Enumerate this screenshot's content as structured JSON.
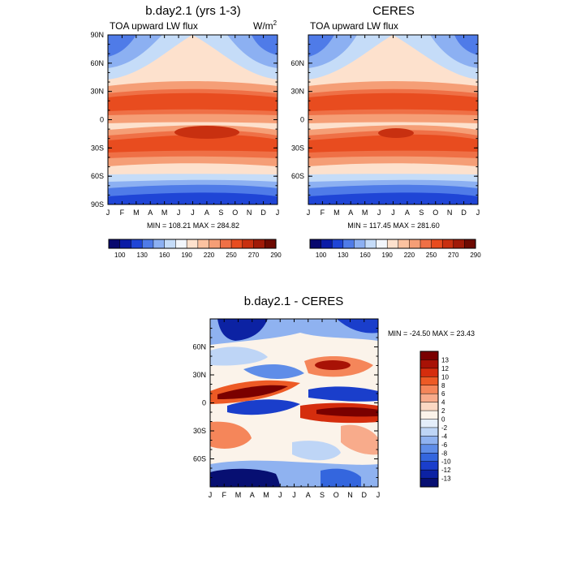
{
  "chart_data": [
    {
      "type": "heatmap",
      "title": "b.day2.1 (yrs 1-3)",
      "subtitle": "TOA upward LW flux",
      "units": "W/m",
      "units_superscript": "2",
      "stats_text": "MIN = 108.21 MAX = 284.82",
      "min": 108.21,
      "max": 284.82,
      "x_ticks": [
        "J",
        "F",
        "M",
        "A",
        "M",
        "J",
        "J",
        "A",
        "S",
        "O",
        "N",
        "D",
        "J"
      ],
      "y_ticks": [
        "90N",
        "60N",
        "30N",
        "0",
        "30S",
        "60S",
        "90S"
      ],
      "y_tick_values": [
        90,
        60,
        30,
        0,
        -30,
        -60,
        -90
      ],
      "xlim": [
        0,
        12
      ],
      "ylim": [
        -90,
        90
      ],
      "legend_levels": [
        100,
        130,
        160,
        190,
        220,
        250,
        270,
        290
      ]
    },
    {
      "type": "heatmap",
      "title": "CERES",
      "subtitle": "TOA upward LW flux",
      "stats_text": "MIN = 117.45 MAX = 281.60",
      "min": 117.45,
      "max": 281.6,
      "x_ticks": [
        "J",
        "F",
        "M",
        "A",
        "M",
        "J",
        "J",
        "A",
        "S",
        "O",
        "N",
        "D",
        "J"
      ],
      "y_ticks": [
        "60N",
        "30N",
        "0",
        "30S",
        "60S"
      ],
      "y_tick_values": [
        60,
        30,
        0,
        -30,
        -60
      ],
      "xlim": [
        0,
        12
      ],
      "ylim": [
        -90,
        90
      ],
      "legend_levels": [
        100,
        130,
        160,
        190,
        220,
        250,
        270,
        290
      ]
    },
    {
      "type": "heatmap",
      "title": "b.day2.1 - CERES",
      "stats_text": "MIN = -24.50 MAX =  23.43",
      "min": -24.5,
      "max": 23.43,
      "x_ticks": [
        "J",
        "F",
        "M",
        "A",
        "M",
        "J",
        "J",
        "A",
        "S",
        "O",
        "N",
        "D",
        "J"
      ],
      "y_ticks": [
        "60N",
        "30N",
        "0",
        "30S",
        "60S"
      ],
      "y_tick_values": [
        60,
        30,
        0,
        -30,
        -60
      ],
      "xlim": [
        0,
        12
      ],
      "ylim": [
        -90,
        90
      ],
      "legend_levels": [
        "13",
        "12",
        "10",
        "8",
        "6",
        "4",
        "2",
        "0",
        "-2",
        "-4",
        "-6",
        "-8",
        "-10",
        "-12",
        "-13"
      ]
    }
  ],
  "colors": {
    "flux_scale": [
      "#08086e",
      "#0a1ba6",
      "#1f45d6",
      "#4f7be8",
      "#8cb0f2",
      "#c5dcf8",
      "#f2f6fb",
      "#fde1cd",
      "#fbc2a0",
      "#f59e76",
      "#ef7046",
      "#e84c1f",
      "#c83010",
      "#a01a08",
      "#6e0a02"
    ],
    "diff_scale": [
      "#7a0000",
      "#a81206",
      "#d52d0d",
      "#ed5a25",
      "#f5865a",
      "#f8ab8b",
      "#fbd8c3",
      "#fbf3ea",
      "#e4eefa",
      "#bed5f6",
      "#8fb2f0",
      "#5f8de8",
      "#3466de",
      "#1a3ecb",
      "#0c22a3",
      "#070f72"
    ]
  }
}
